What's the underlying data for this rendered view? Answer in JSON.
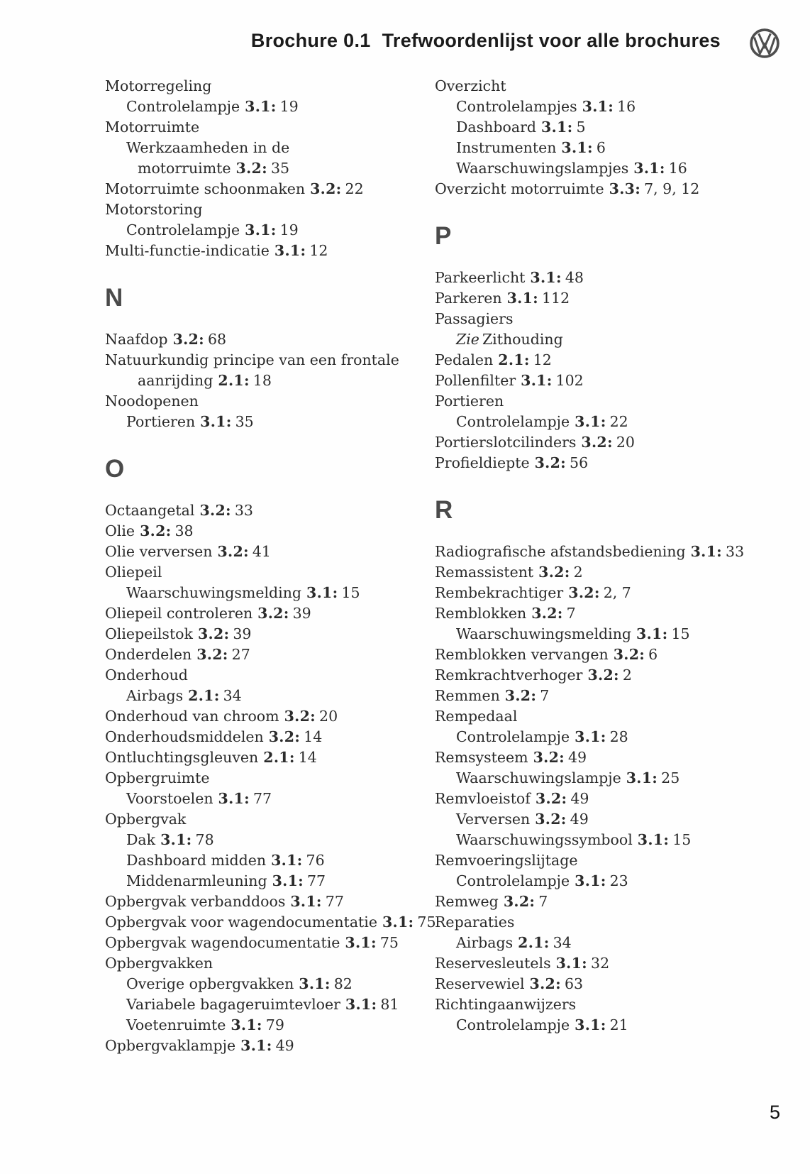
{
  "header": {
    "title_prefix": "Brochure 0.1",
    "title_main": "Trefwoordenlijst voor alle brochures",
    "logo_icon": "vw-roundel"
  },
  "page": {
    "number": "5"
  },
  "colors": {
    "text": "#2b2b2b",
    "section_letter": "#4a4a4a",
    "logo": "#4f4f4f",
    "title": "#1b1b1b"
  },
  "index": {
    "left_column": [
      {
        "type": "entry",
        "indent": 0,
        "text": "Motorregeling"
      },
      {
        "type": "entry",
        "indent": 1,
        "text": "Controlelampje",
        "ref": "3.1:",
        "pages": "19"
      },
      {
        "type": "entry",
        "indent": 0,
        "text": "Motorruimte"
      },
      {
        "type": "entry",
        "indent": 1,
        "text": "Werkzaamheden in de"
      },
      {
        "type": "entry",
        "indent": 2,
        "text": "motorruimte",
        "ref": "3.2:",
        "pages": "35"
      },
      {
        "type": "entry",
        "indent": 0,
        "text": "Motorruimte schoonmaken",
        "ref": "3.2:",
        "pages": "22"
      },
      {
        "type": "entry",
        "indent": 0,
        "text": "Motorstoring"
      },
      {
        "type": "entry",
        "indent": 1,
        "text": "Controlelampje",
        "ref": "3.1:",
        "pages": "19"
      },
      {
        "type": "entry",
        "indent": 0,
        "text": "Multi-functie-indicatie",
        "ref": "3.1:",
        "pages": "12"
      },
      {
        "type": "letter",
        "text": "N"
      },
      {
        "type": "entry",
        "indent": 0,
        "text": "Naafdop",
        "ref": "3.2:",
        "pages": "68"
      },
      {
        "type": "entry",
        "indent": 0,
        "text": "Natuurkundig principe van een frontale"
      },
      {
        "type": "entry",
        "indent": 2,
        "text": "aanrijding",
        "ref": "2.1:",
        "pages": "18"
      },
      {
        "type": "entry",
        "indent": 0,
        "text": "Noodopenen"
      },
      {
        "type": "entry",
        "indent": 1,
        "text": "Portieren",
        "ref": "3.1:",
        "pages": "35"
      },
      {
        "type": "letter",
        "text": "O"
      },
      {
        "type": "entry",
        "indent": 0,
        "text": "Octaangetal",
        "ref": "3.2:",
        "pages": "33"
      },
      {
        "type": "entry",
        "indent": 0,
        "text": "Olie",
        "ref": "3.2:",
        "pages": "38"
      },
      {
        "type": "entry",
        "indent": 0,
        "text": "Olie verversen",
        "ref": "3.2:",
        "pages": "41"
      },
      {
        "type": "entry",
        "indent": 0,
        "text": "Oliepeil"
      },
      {
        "type": "entry",
        "indent": 1,
        "text": "Waarschuwingsmelding",
        "ref": "3.1:",
        "pages": "15"
      },
      {
        "type": "entry",
        "indent": 0,
        "text": "Oliepeil controleren",
        "ref": "3.2:",
        "pages": "39"
      },
      {
        "type": "entry",
        "indent": 0,
        "text": "Oliepeilstok",
        "ref": "3.2:",
        "pages": "39"
      },
      {
        "type": "entry",
        "indent": 0,
        "text": "Onderdelen",
        "ref": "3.2:",
        "pages": "27"
      },
      {
        "type": "entry",
        "indent": 0,
        "text": "Onderhoud"
      },
      {
        "type": "entry",
        "indent": 1,
        "text": "Airbags",
        "ref": "2.1:",
        "pages": "34"
      },
      {
        "type": "entry",
        "indent": 0,
        "text": "Onderhoud van chroom",
        "ref": "3.2:",
        "pages": "20"
      },
      {
        "type": "entry",
        "indent": 0,
        "text": "Onderhoudsmiddelen",
        "ref": "3.2:",
        "pages": "14"
      },
      {
        "type": "entry",
        "indent": 0,
        "text": "Ontluchtingsgleuven",
        "ref": "2.1:",
        "pages": "14"
      },
      {
        "type": "entry",
        "indent": 0,
        "text": "Opbergruimte"
      },
      {
        "type": "entry",
        "indent": 1,
        "text": "Voorstoelen",
        "ref": "3.1:",
        "pages": "77"
      },
      {
        "type": "entry",
        "indent": 0,
        "text": "Opbergvak"
      },
      {
        "type": "entry",
        "indent": 1,
        "text": "Dak",
        "ref": "3.1:",
        "pages": "78"
      },
      {
        "type": "entry",
        "indent": 1,
        "text": "Dashboard midden",
        "ref": "3.1:",
        "pages": "76"
      },
      {
        "type": "entry",
        "indent": 1,
        "text": "Middenarmleuning",
        "ref": "3.1:",
        "pages": "77"
      },
      {
        "type": "entry",
        "indent": 0,
        "text": "Opbergvak verbanddoos",
        "ref": "3.1:",
        "pages": "77"
      },
      {
        "type": "entry",
        "indent": 0,
        "text": "Opbergvak voor wagendocumentatie",
        "ref": "3.1:",
        "pages": "75"
      },
      {
        "type": "entry",
        "indent": 0,
        "text": "Opbergvak wagendocumentatie",
        "ref": "3.1:",
        "pages": "75"
      },
      {
        "type": "entry",
        "indent": 0,
        "text": "Opbergvakken"
      },
      {
        "type": "entry",
        "indent": 1,
        "text": "Overige opbergvakken",
        "ref": "3.1:",
        "pages": "82"
      },
      {
        "type": "entry",
        "indent": 1,
        "text": "Variabele bagageruimtevloer",
        "ref": "3.1:",
        "pages": "81"
      },
      {
        "type": "entry",
        "indent": 1,
        "text": "Voetenruimte",
        "ref": "3.1:",
        "pages": "79"
      },
      {
        "type": "entry",
        "indent": 0,
        "text": "Opbergvaklampje",
        "ref": "3.1:",
        "pages": "49"
      }
    ],
    "right_column": [
      {
        "type": "entry",
        "indent": 0,
        "text": "Overzicht"
      },
      {
        "type": "entry",
        "indent": 1,
        "text": "Controlelampjes",
        "ref": "3.1:",
        "pages": "16"
      },
      {
        "type": "entry",
        "indent": 1,
        "text": "Dashboard",
        "ref": "3.1:",
        "pages": "5"
      },
      {
        "type": "entry",
        "indent": 1,
        "text": "Instrumenten",
        "ref": "3.1:",
        "pages": "6"
      },
      {
        "type": "entry",
        "indent": 1,
        "text": "Waarschuwingslampjes",
        "ref": "3.1:",
        "pages": "16"
      },
      {
        "type": "entry",
        "indent": 0,
        "text": "Overzicht motorruimte",
        "ref": "3.3:",
        "pages": "7, 9, 12"
      },
      {
        "type": "letter",
        "text": "P"
      },
      {
        "type": "entry",
        "indent": 0,
        "text": "Parkeerlicht",
        "ref": "3.1:",
        "pages": "48"
      },
      {
        "type": "entry",
        "indent": 0,
        "text": "Parkeren",
        "ref": "3.1:",
        "pages": "112"
      },
      {
        "type": "entry",
        "indent": 0,
        "text": "Passagiers"
      },
      {
        "type": "entry",
        "indent": 1,
        "see": "Zie",
        "text": "Zithouding"
      },
      {
        "type": "entry",
        "indent": 0,
        "text": "Pedalen",
        "ref": "2.1:",
        "pages": "12"
      },
      {
        "type": "entry",
        "indent": 0,
        "text": "Pollenfilter",
        "ref": "3.1:",
        "pages": "102"
      },
      {
        "type": "entry",
        "indent": 0,
        "text": "Portieren"
      },
      {
        "type": "entry",
        "indent": 1,
        "text": "Controlelampje",
        "ref": "3.1:",
        "pages": "22"
      },
      {
        "type": "entry",
        "indent": 0,
        "text": "Portierslotcilinders",
        "ref": "3.2:",
        "pages": "20"
      },
      {
        "type": "entry",
        "indent": 0,
        "text": "Profieldiepte",
        "ref": "3.2:",
        "pages": "56"
      },
      {
        "type": "letter",
        "text": "R"
      },
      {
        "type": "entry",
        "indent": 0,
        "text": "Radiografische afstandsbediening",
        "ref": "3.1:",
        "pages": "33"
      },
      {
        "type": "entry",
        "indent": 0,
        "text": "Remassistent",
        "ref": "3.2:",
        "pages": "2"
      },
      {
        "type": "entry",
        "indent": 0,
        "text": "Rembekrachtiger",
        "ref": "3.2:",
        "pages": "2, 7"
      },
      {
        "type": "entry",
        "indent": 0,
        "text": "Remblokken",
        "ref": "3.2:",
        "pages": "7"
      },
      {
        "type": "entry",
        "indent": 1,
        "text": "Waarschuwingsmelding",
        "ref": "3.1:",
        "pages": "15"
      },
      {
        "type": "entry",
        "indent": 0,
        "text": "Remblokken vervangen",
        "ref": "3.2:",
        "pages": "6"
      },
      {
        "type": "entry",
        "indent": 0,
        "text": "Remkrachtverhoger",
        "ref": "3.2:",
        "pages": "2"
      },
      {
        "type": "entry",
        "indent": 0,
        "text": "Remmen",
        "ref": "3.2:",
        "pages": "7"
      },
      {
        "type": "entry",
        "indent": 0,
        "text": "Rempedaal"
      },
      {
        "type": "entry",
        "indent": 1,
        "text": "Controlelampje",
        "ref": "3.1:",
        "pages": "28"
      },
      {
        "type": "entry",
        "indent": 0,
        "text": "Remsysteem",
        "ref": "3.2:",
        "pages": "49"
      },
      {
        "type": "entry",
        "indent": 1,
        "text": "Waarschuwingslampje",
        "ref": "3.1:",
        "pages": "25"
      },
      {
        "type": "entry",
        "indent": 0,
        "text": "Remvloeistof",
        "ref": "3.2:",
        "pages": "49"
      },
      {
        "type": "entry",
        "indent": 1,
        "text": "Verversen",
        "ref": "3.2:",
        "pages": "49"
      },
      {
        "type": "entry",
        "indent": 1,
        "text": "Waarschuwingssymbool",
        "ref": "3.1:",
        "pages": "15"
      },
      {
        "type": "entry",
        "indent": 0,
        "text": "Remvoeringslijtage"
      },
      {
        "type": "entry",
        "indent": 1,
        "text": "Controlelampje",
        "ref": "3.1:",
        "pages": "23"
      },
      {
        "type": "entry",
        "indent": 0,
        "text": "Remweg",
        "ref": "3.2:",
        "pages": "7"
      },
      {
        "type": "entry",
        "indent": 0,
        "text": "Reparaties"
      },
      {
        "type": "entry",
        "indent": 1,
        "text": "Airbags",
        "ref": "2.1:",
        "pages": "34"
      },
      {
        "type": "entry",
        "indent": 0,
        "text": "Reservesleutels",
        "ref": "3.1:",
        "pages": "32"
      },
      {
        "type": "entry",
        "indent": 0,
        "text": "Reservewiel",
        "ref": "3.2:",
        "pages": "63"
      },
      {
        "type": "entry",
        "indent": 0,
        "text": "Richtingaanwijzers"
      },
      {
        "type": "entry",
        "indent": 1,
        "text": "Controlelampje",
        "ref": "3.1:",
        "pages": "21"
      }
    ]
  }
}
